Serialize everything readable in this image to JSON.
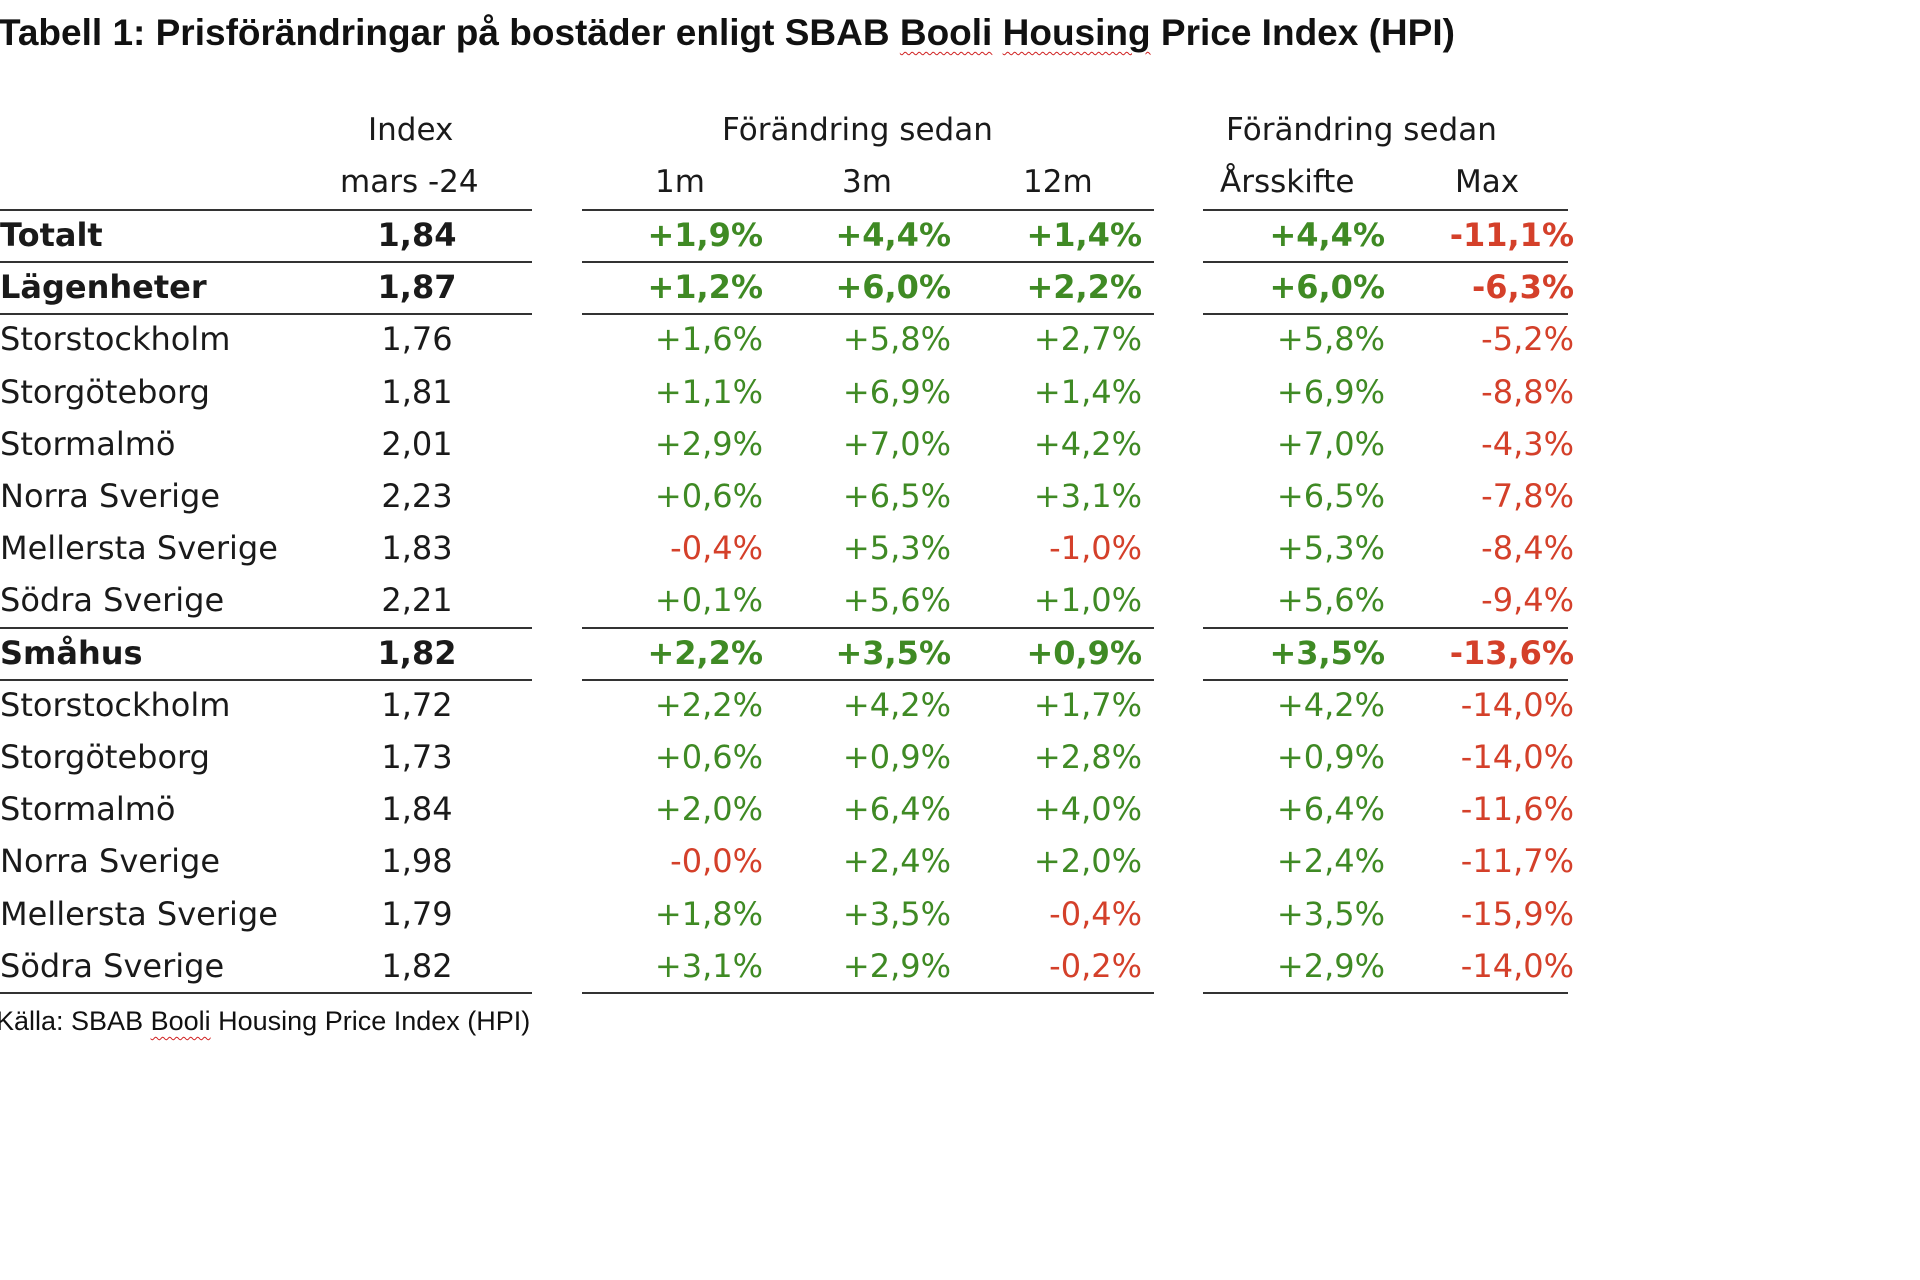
{
  "title": {
    "prefix": "Tabell 1: Prisförändringar på bostäder enligt SBAB ",
    "w1": "Booli",
    "w2": "Housing",
    "suffix": " Price Index (HPI)"
  },
  "header": {
    "index_line1": "Index",
    "index_line2": "mars -24",
    "group1": "Förändring sedan",
    "col_1m": "1m",
    "col_3m": "3m",
    "col_12m": "12m",
    "group2": "Förändring sedan",
    "col_ytd": "Årsskifte",
    "col_max": "Max"
  },
  "rows": [
    {
      "label": "Totalt",
      "index": "1,84",
      "m1": "+1,9%",
      "m3": "+4,4%",
      "m12": "+1,4%",
      "ytd": "+4,4%",
      "max": "-11,1%",
      "bold": true
    },
    {
      "label": "Lägenheter",
      "index": "1,87",
      "m1": "+1,2%",
      "m3": "+6,0%",
      "m12": "+2,2%",
      "ytd": "+6,0%",
      "max": "-6,3%",
      "bold": true
    },
    {
      "label": "Storstockholm",
      "index": "1,76",
      "m1": "+1,6%",
      "m3": "+5,8%",
      "m12": "+2,7%",
      "ytd": "+5,8%",
      "max": "-5,2%",
      "bold": false
    },
    {
      "label": "Storgöteborg",
      "index": "1,81",
      "m1": "+1,1%",
      "m3": "+6,9%",
      "m12": "+1,4%",
      "ytd": "+6,9%",
      "max": "-8,8%",
      "bold": false
    },
    {
      "label": "Stormalmö",
      "index": "2,01",
      "m1": "+2,9%",
      "m3": "+7,0%",
      "m12": "+4,2%",
      "ytd": "+7,0%",
      "max": "-4,3%",
      "bold": false
    },
    {
      "label": "Norra Sverige",
      "index": "2,23",
      "m1": "+0,6%",
      "m3": "+6,5%",
      "m12": "+3,1%",
      "ytd": "+6,5%",
      "max": "-7,8%",
      "bold": false
    },
    {
      "label": "Mellersta Sverige",
      "index": "1,83",
      "m1": "-0,4%",
      "m3": "+5,3%",
      "m12": "-1,0%",
      "ytd": "+5,3%",
      "max": "-8,4%",
      "bold": false
    },
    {
      "label": "Södra Sverige",
      "index": "2,21",
      "m1": "+0,1%",
      "m3": "+5,6%",
      "m12": "+1,0%",
      "ytd": "+5,6%",
      "max": "-9,4%",
      "bold": false
    },
    {
      "label": "Småhus",
      "index": "1,82",
      "m1": "+2,2%",
      "m3": "+3,5%",
      "m12": "+0,9%",
      "ytd": "+3,5%",
      "max": "-13,6%",
      "bold": true
    },
    {
      "label": "Storstockholm",
      "index": "1,72",
      "m1": "+2,2%",
      "m3": "+4,2%",
      "m12": "+1,7%",
      "ytd": "+4,2%",
      "max": "-14,0%",
      "bold": false
    },
    {
      "label": "Storgöteborg",
      "index": "1,73",
      "m1": "+0,6%",
      "m3": "+0,9%",
      "m12": "+2,8%",
      "ytd": "+0,9%",
      "max": "-14,0%",
      "bold": false
    },
    {
      "label": "Stormalmö",
      "index": "1,84",
      "m1": "+2,0%",
      "m3": "+6,4%",
      "m12": "+4,0%",
      "ytd": "+6,4%",
      "max": "-11,6%",
      "bold": false
    },
    {
      "label": "Norra Sverige",
      "index": "1,98",
      "m1": "-0,0%",
      "m3": "+2,4%",
      "m12": "+2,0%",
      "ytd": "+2,4%",
      "max": "-11,7%",
      "bold": false
    },
    {
      "label": "Mellersta Sverige",
      "index": "1,79",
      "m1": "+1,8%",
      "m3": "+3,5%",
      "m12": "-0,4%",
      "ytd": "+3,5%",
      "max": "-15,9%",
      "bold": false
    },
    {
      "label": "Södra Sverige",
      "index": "1,82",
      "m1": "+3,1%",
      "m3": "+2,9%",
      "m12": "-0,2%",
      "ytd": "+2,9%",
      "max": "-14,0%",
      "bold": false
    }
  ],
  "source": {
    "prefix": "Källa: SBAB ",
    "w1": "Booli",
    "suffix": " Housing Price Index (HPI)"
  },
  "colors": {
    "positive": "#3f8a24",
    "negative": "#d4402a",
    "rule": "#333333"
  }
}
